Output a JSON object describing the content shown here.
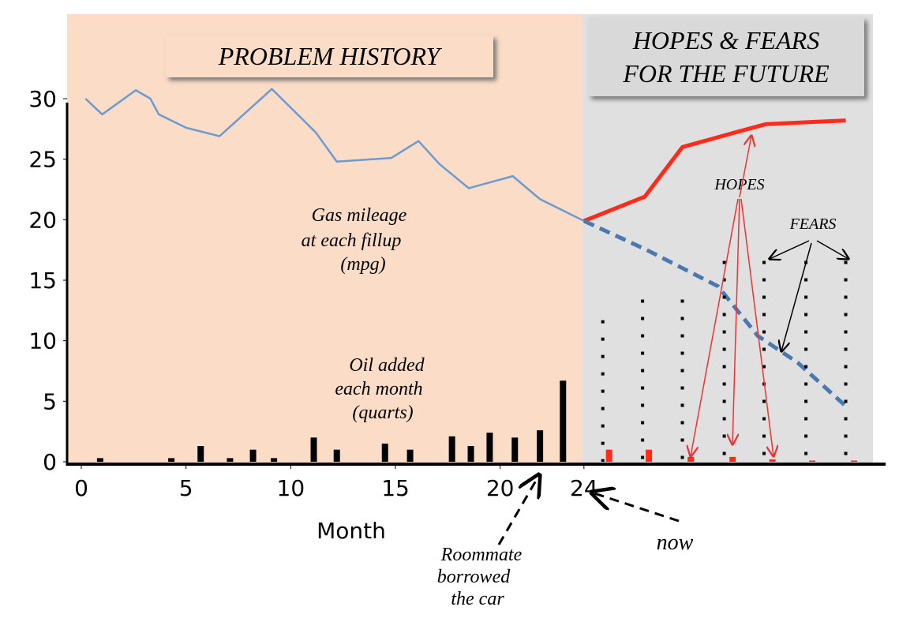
{
  "chart_data": {
    "type": "line",
    "xlabel": "Month",
    "xlim": [
      0,
      37.8
    ],
    "ylim": [
      0,
      30
    ],
    "xticks": [
      0,
      5,
      10,
      15,
      20,
      24
    ],
    "yticks": [
      0,
      5,
      10,
      15,
      20,
      25,
      30
    ],
    "annotations": {
      "history": "PROBLEM HISTORY",
      "future": [
        "HOPES & FEARS",
        "FOR THE FUTURE"
      ],
      "mileage": [
        "Gas mileage",
        "at each fillup",
        "(mpg)"
      ],
      "oil": [
        "Oil added",
        "each month",
        "(quarts)"
      ],
      "hopes": "HOPES",
      "fears": "FEARS",
      "roommate": [
        "Roommate",
        "borrowed",
        "the car"
      ],
      "now": "now"
    },
    "series": [
      {
        "type": "line",
        "color": "#6b9bd1",
        "x": [
          0.2,
          1.0,
          2.6,
          3.3,
          3.7,
          5.0,
          6.6,
          9.1,
          11.2,
          12.2,
          14.8,
          16.1,
          17.1,
          18.5,
          20.6,
          21.9,
          24
        ],
        "values": [
          30,
          28.7,
          30.7,
          30.0,
          28.7,
          27.6,
          26.9,
          30.8,
          27.2,
          24.8,
          25.1,
          26.5,
          24.6,
          22.6,
          23.6,
          21.7,
          19.9
        ]
      },
      {
        "type": "line",
        "color": "#ff2a1a",
        "x": [
          24,
          26.9,
          28.7,
          31.2,
          32.7,
          36.5
        ],
        "values": [
          19.9,
          21.9,
          26,
          27.2,
          27.9,
          28.2
        ]
      },
      {
        "type": "line",
        "color": "#4a78b0",
        "dashed": true,
        "x": [
          24,
          27.0,
          30.4,
          32.3,
          34.2,
          36.5
        ],
        "values": [
          19.9,
          17.5,
          14.5,
          10.4,
          8.2,
          4.6
        ]
      },
      {
        "type": "bar",
        "color": "#000000",
        "x": [
          0.9,
          4.3,
          5.7,
          7.1,
          8.2,
          9.2,
          11.1,
          12.2,
          14.5,
          15.7,
          17.7,
          18.6,
          19.5,
          20.7,
          21.9,
          23.0
        ],
        "values": [
          0.3,
          0.3,
          1.3,
          0.3,
          1.0,
          0.3,
          2.0,
          1.0,
          1.5,
          1.0,
          2.1,
          1.3,
          2.4,
          2.0,
          2.6,
          6.7
        ]
      },
      {
        "type": "bar",
        "color": "#ff2a1a",
        "x": [
          25.2,
          27.1,
          29.1,
          31.1,
          33.0,
          34.9,
          36.9
        ],
        "values": [
          1.0,
          1.0,
          0.4,
          0.4,
          0.2,
          0.1,
          0.1
        ]
      },
      {
        "type": "bar",
        "color": "#000000",
        "dotted": true,
        "x": [
          24.9,
          26.8,
          28.7,
          30.7,
          32.6,
          34.6,
          36.5
        ],
        "values": [
          11.7,
          13.4,
          13.4,
          16.6,
          16.6,
          16.6,
          16.6
        ]
      }
    ]
  }
}
